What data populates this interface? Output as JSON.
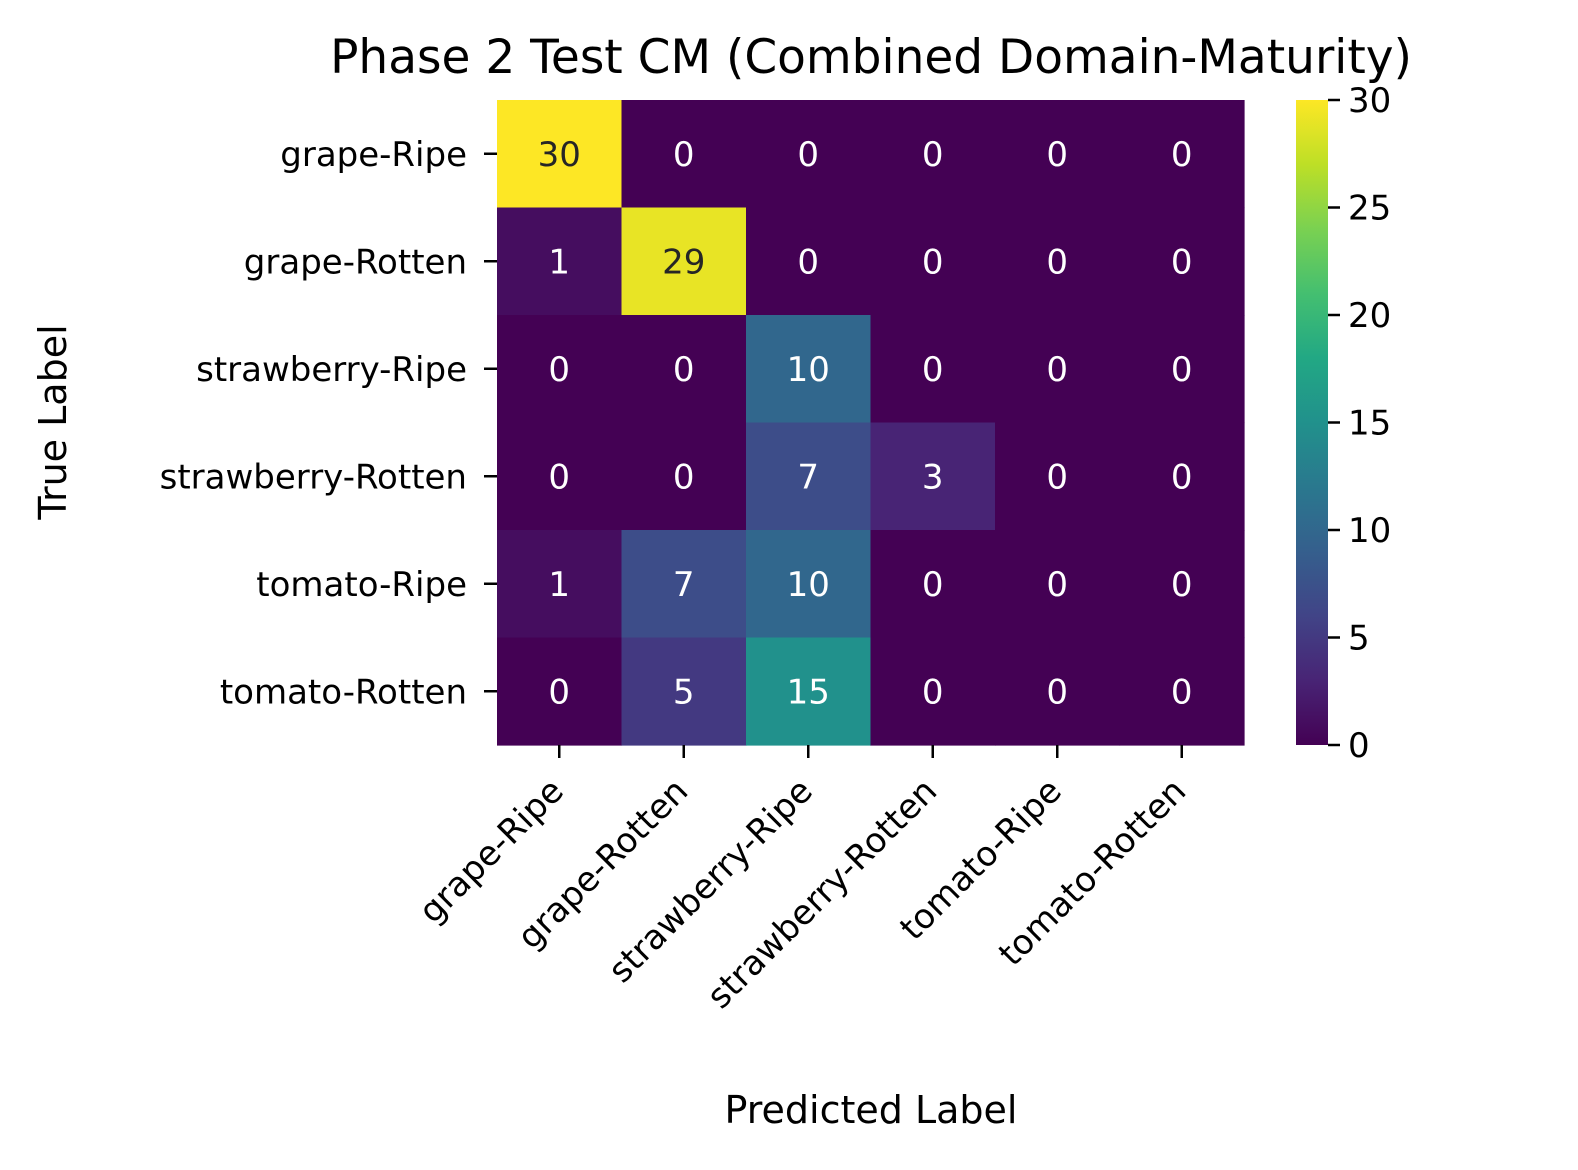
{
  "chart_data": {
    "type": "heatmap",
    "title": "Phase 2 Test CM (Combined Domain-Maturity)",
    "xlabel": "Predicted Label",
    "ylabel": "True Label",
    "x_categories": [
      "grape-Ripe",
      "grape-Rotten",
      "strawberry-Ripe",
      "strawberry-Rotten",
      "tomato-Ripe",
      "tomato-Rotten"
    ],
    "y_categories": [
      "grape-Ripe",
      "grape-Rotten",
      "strawberry-Ripe",
      "strawberry-Rotten",
      "tomato-Ripe",
      "tomato-Rotten"
    ],
    "values": [
      [
        30,
        0,
        0,
        0,
        0,
        0
      ],
      [
        1,
        29,
        0,
        0,
        0,
        0
      ],
      [
        0,
        0,
        10,
        0,
        0,
        0
      ],
      [
        0,
        0,
        7,
        3,
        0,
        0
      ],
      [
        1,
        7,
        10,
        0,
        0,
        0
      ],
      [
        0,
        5,
        15,
        0,
        0,
        0
      ]
    ],
    "colormap": "viridis",
    "colorbar": {
      "range": [
        0,
        30
      ],
      "ticks": [
        "0",
        "5",
        "10",
        "15",
        "20",
        "25",
        "30"
      ]
    },
    "annotations": true
  }
}
